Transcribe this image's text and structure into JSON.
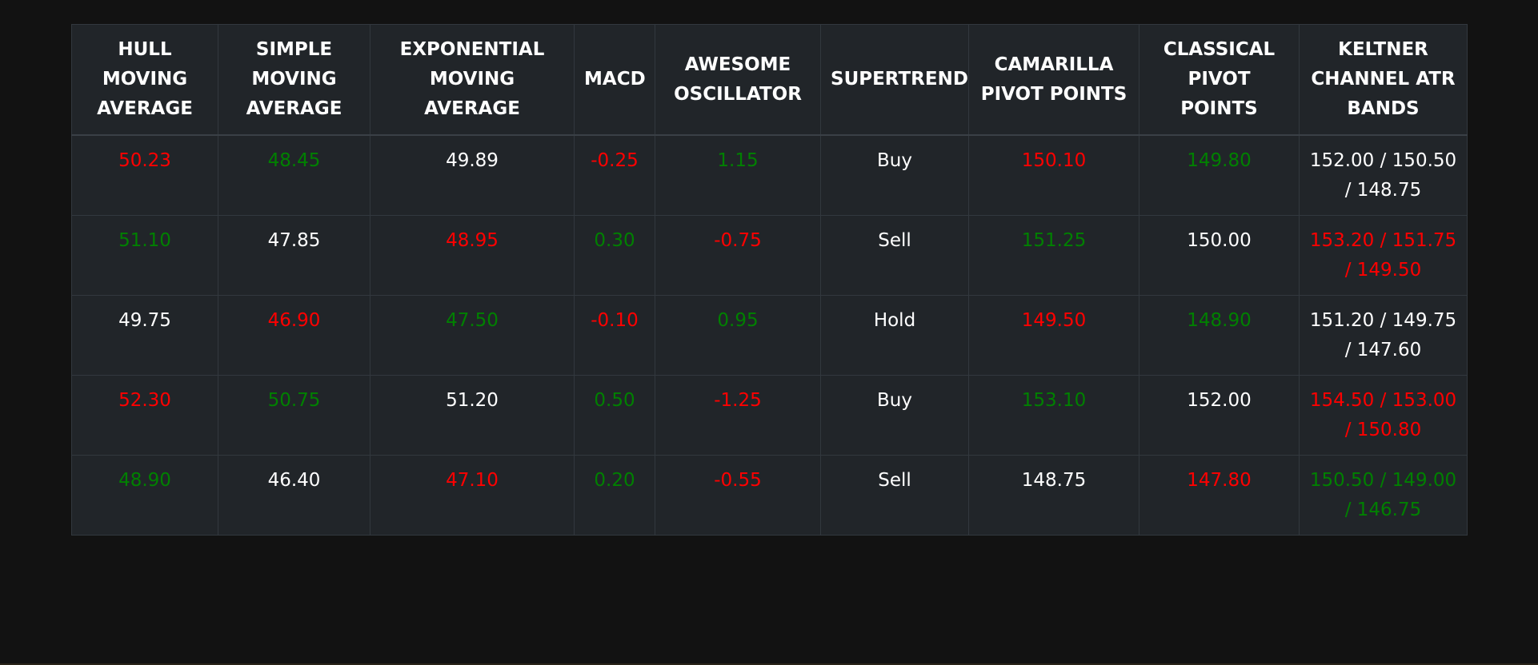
{
  "colors": {
    "page_background": "#121212",
    "table_background": "#212529",
    "positive": "#008000",
    "negative": "#ff0000",
    "neutral": "#ffffff"
  },
  "table": {
    "headers": [
      "HULL MOVING AVERAGE",
      "SIMPLE MOVING AVERAGE",
      "EXPONENTIAL MOVING AVERAGE",
      "MACD",
      "AWESOME OSCILLATOR",
      "SUPERTREND",
      "CAMARILLA PIVOT POINTS",
      "CLASSICAL PIVOT POINTS",
      "KELTNER CHANNEL ATR BANDS"
    ],
    "rows": [
      {
        "cells": [
          {
            "text": "50.23",
            "tone": "negative"
          },
          {
            "text": "48.45",
            "tone": "positive"
          },
          {
            "text": "49.89",
            "tone": "neutral"
          },
          {
            "text": "-0.25",
            "tone": "negative"
          },
          {
            "text": "1.15",
            "tone": "positive"
          },
          {
            "text": "Buy",
            "tone": "neutral"
          },
          {
            "text": "150.10",
            "tone": "negative"
          },
          {
            "text": "149.80",
            "tone": "positive"
          },
          {
            "text": "152.00 / 150.50 / 148.75",
            "tone": "neutral"
          }
        ]
      },
      {
        "cells": [
          {
            "text": "51.10",
            "tone": "positive"
          },
          {
            "text": "47.85",
            "tone": "neutral"
          },
          {
            "text": "48.95",
            "tone": "negative"
          },
          {
            "text": "0.30",
            "tone": "positive"
          },
          {
            "text": "-0.75",
            "tone": "negative"
          },
          {
            "text": "Sell",
            "tone": "neutral"
          },
          {
            "text": "151.25",
            "tone": "positive"
          },
          {
            "text": "150.00",
            "tone": "neutral"
          },
          {
            "text": "153.20 / 151.75 / 149.50",
            "tone": "negative"
          }
        ]
      },
      {
        "cells": [
          {
            "text": "49.75",
            "tone": "neutral"
          },
          {
            "text": "46.90",
            "tone": "negative"
          },
          {
            "text": "47.50",
            "tone": "positive"
          },
          {
            "text": "-0.10",
            "tone": "negative"
          },
          {
            "text": "0.95",
            "tone": "positive"
          },
          {
            "text": "Hold",
            "tone": "neutral"
          },
          {
            "text": "149.50",
            "tone": "negative"
          },
          {
            "text": "148.90",
            "tone": "positive"
          },
          {
            "text": "151.20 / 149.75 / 147.60",
            "tone": "neutral"
          }
        ]
      },
      {
        "cells": [
          {
            "text": "52.30",
            "tone": "negative"
          },
          {
            "text": "50.75",
            "tone": "positive"
          },
          {
            "text": "51.20",
            "tone": "neutral"
          },
          {
            "text": "0.50",
            "tone": "positive"
          },
          {
            "text": "-1.25",
            "tone": "negative"
          },
          {
            "text": "Buy",
            "tone": "neutral"
          },
          {
            "text": "153.10",
            "tone": "positive"
          },
          {
            "text": "152.00",
            "tone": "neutral"
          },
          {
            "text": "154.50 / 153.00 / 150.80",
            "tone": "negative"
          }
        ]
      },
      {
        "cells": [
          {
            "text": "48.90",
            "tone": "positive"
          },
          {
            "text": "46.40",
            "tone": "neutral"
          },
          {
            "text": "47.10",
            "tone": "negative"
          },
          {
            "text": "0.20",
            "tone": "positive"
          },
          {
            "text": "-0.55",
            "tone": "negative"
          },
          {
            "text": "Sell",
            "tone": "neutral"
          },
          {
            "text": "148.75",
            "tone": "neutral"
          },
          {
            "text": "147.80",
            "tone": "negative"
          },
          {
            "text": "150.50 / 149.00 / 146.75",
            "tone": "positive"
          }
        ]
      }
    ]
  }
}
